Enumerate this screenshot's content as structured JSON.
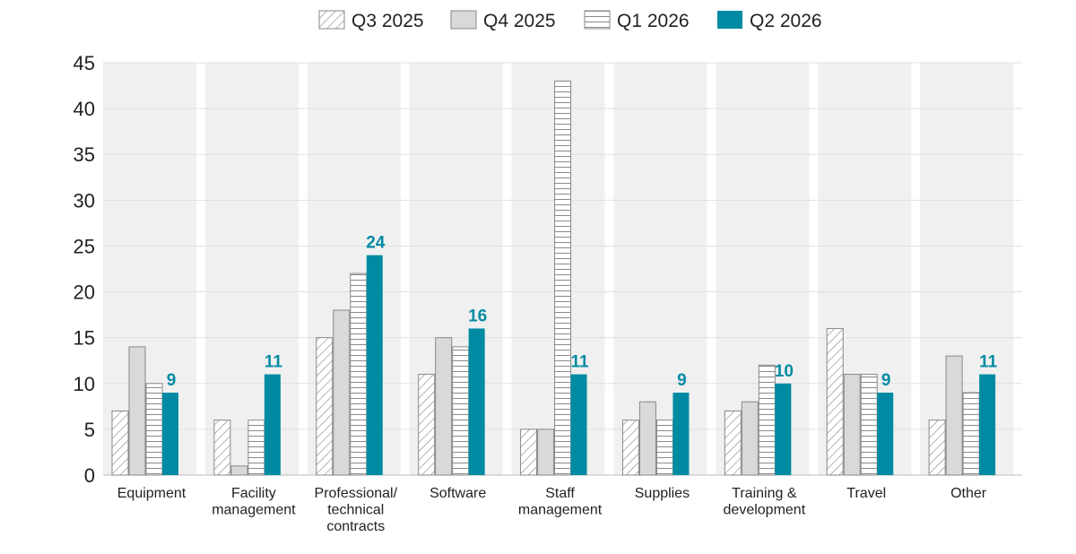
{
  "chart_data": {
    "type": "bar",
    "categories": [
      [
        "Equipment"
      ],
      [
        "Facility",
        "management"
      ],
      [
        "Professional/",
        "technical",
        "contracts"
      ],
      [
        "Software"
      ],
      [
        "Staff",
        "management"
      ],
      [
        "Supplies"
      ],
      [
        "Training &",
        "development"
      ],
      [
        "Travel"
      ],
      [
        "Other"
      ]
    ],
    "series": [
      {
        "name": "Q3 2025",
        "pattern": "diagonal",
        "values": [
          7,
          6,
          15,
          11,
          5,
          6,
          7,
          16,
          6
        ]
      },
      {
        "name": "Q4 2025",
        "pattern": "solid-gray",
        "values": [
          14,
          1,
          18,
          15,
          5,
          8,
          8,
          11,
          13
        ]
      },
      {
        "name": "Q1 2026",
        "pattern": "horizontal",
        "values": [
          10,
          6,
          22,
          14,
          43,
          6,
          12,
          11,
          9
        ]
      },
      {
        "name": "Q2 2026",
        "pattern": "solid-teal",
        "values": [
          9,
          11,
          24,
          16,
          11,
          9,
          10,
          9,
          11
        ],
        "labeled": true
      }
    ],
    "yticks": [
      0,
      5,
      10,
      15,
      20,
      25,
      30,
      35,
      40,
      45
    ],
    "ylim": [
      0,
      45
    ],
    "legend": "top-center",
    "grid": true,
    "colors": {
      "accent": "#008ba3",
      "gray": "#d9d9d9",
      "band": "#f0f0f0",
      "grid": "#e0e0e0",
      "outline": "#888888"
    }
  }
}
